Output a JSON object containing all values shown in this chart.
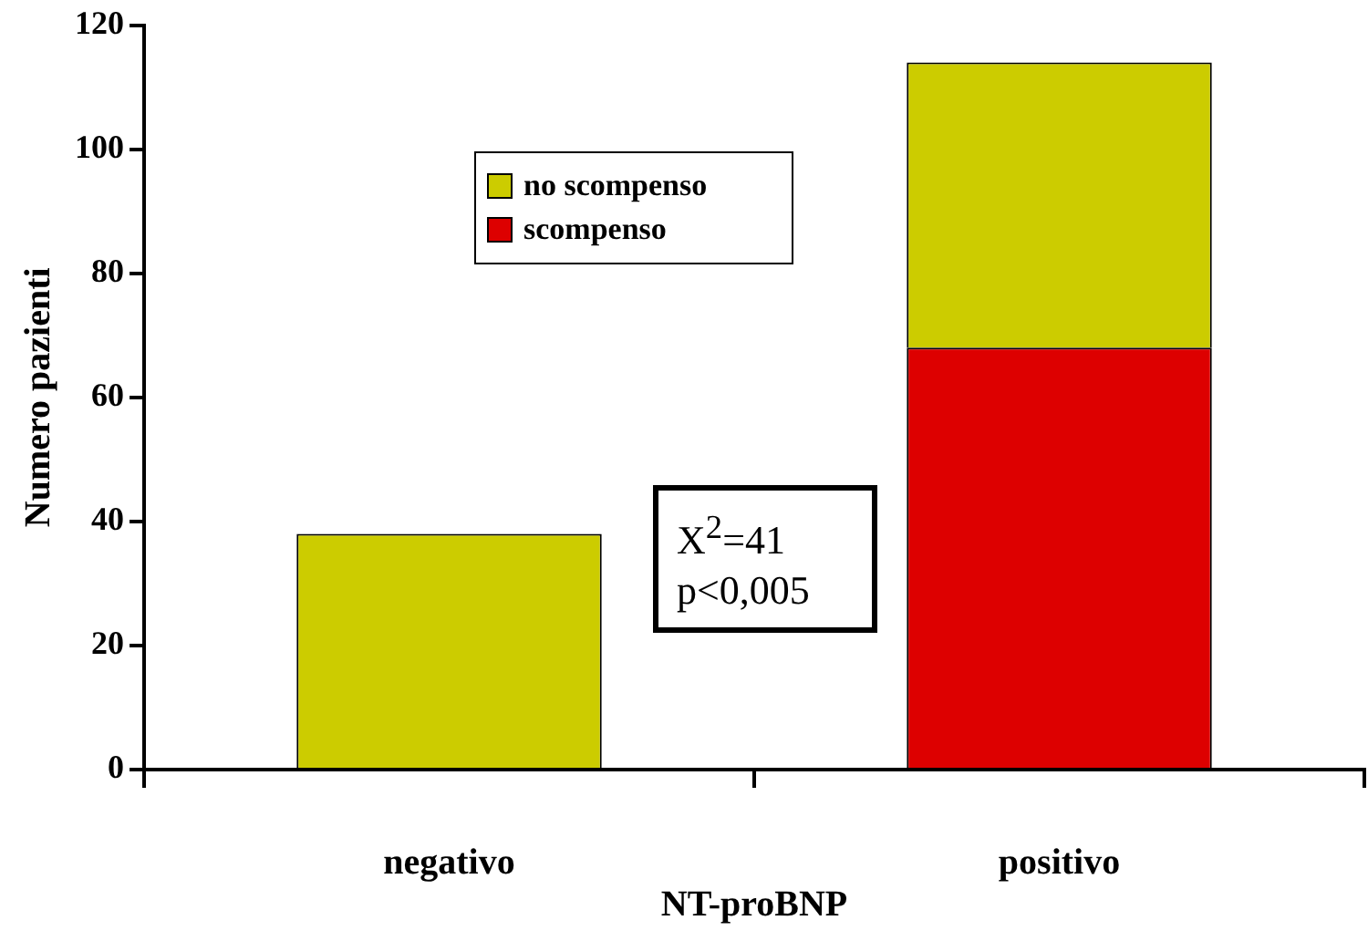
{
  "chart_data": {
    "type": "bar",
    "stacked": true,
    "xlabel": "NT-proBNP",
    "ylabel": "Numero pazienti",
    "categories": [
      "negativo",
      "positivo"
    ],
    "series": [
      {
        "name": "scompenso",
        "color": "#dd0000",
        "values": [
          0,
          68
        ]
      },
      {
        "name": "no scompenso",
        "color": "#cccc00",
        "values": [
          38,
          46
        ]
      }
    ],
    "ylim": [
      0,
      120
    ],
    "yticks": [
      0,
      20,
      40,
      60,
      80,
      100,
      120
    ],
    "grid": false,
    "legend": "top",
    "annotations": [
      "X$^{2}$=41",
      "p<0,005"
    ]
  }
}
